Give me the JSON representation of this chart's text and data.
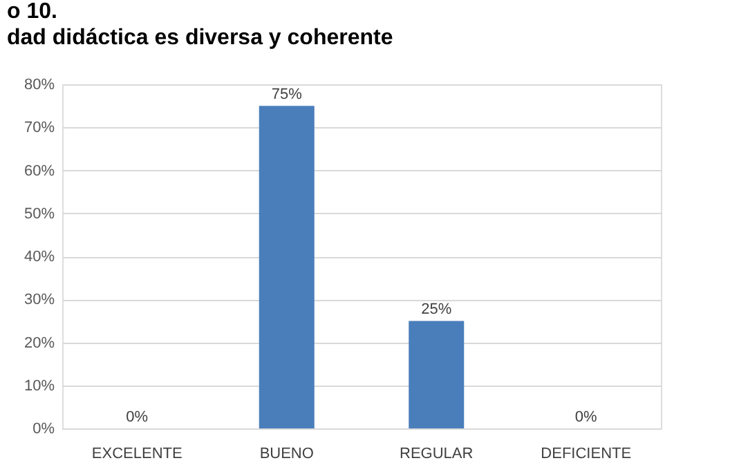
{
  "chart_data": {
    "type": "bar",
    "title": "o  10.",
    "subtitle": "dad didáctica es diversa y coherente",
    "categories": [
      "EXCELENTE",
      "BUENO",
      "REGULAR",
      "DEFICIENTE"
    ],
    "values": [
      0,
      75,
      25,
      0
    ],
    "value_labels": [
      "0%",
      "75%",
      "25%",
      "0%"
    ],
    "color": "#4a7ebb",
    "ylim": [
      0,
      80
    ],
    "yticks": [
      {
        "value": 0,
        "label": "0%"
      },
      {
        "value": 10,
        "label": "10%"
      },
      {
        "value": 20,
        "label": "20%"
      },
      {
        "value": 30,
        "label": "30%"
      },
      {
        "value": 40,
        "label": "40%"
      },
      {
        "value": 50,
        "label": "50%"
      },
      {
        "value": 60,
        "label": "60%"
      },
      {
        "value": 70,
        "label": "70%"
      },
      {
        "value": 80,
        "label": "80%"
      }
    ],
    "grid": "y"
  }
}
